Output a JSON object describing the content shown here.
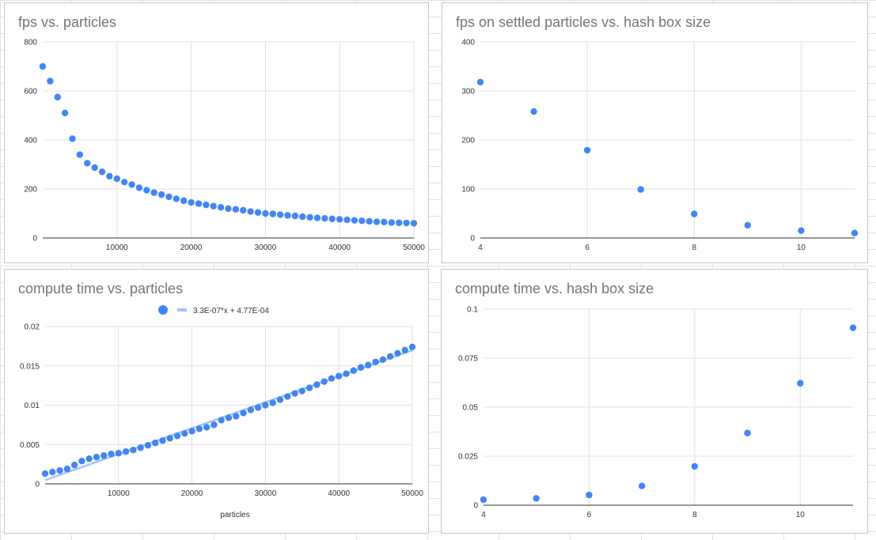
{
  "colors": {
    "point": "#4285f4",
    "trendline": "#a4c2f4",
    "grid": "#e0e0e0",
    "axis": "#333333",
    "title": "#757575"
  },
  "chart_data": [
    {
      "type": "scatter",
      "title": "fps vs. particles",
      "xlabel": "",
      "ylabel": "",
      "xlim": [
        0,
        50000
      ],
      "ylim": [
        0,
        800
      ],
      "xticks": [
        10000,
        20000,
        30000,
        40000,
        50000
      ],
      "xtick_labels": [
        "10000",
        "20000",
        "30000",
        "40000",
        "50000"
      ],
      "yticks": [
        0,
        200,
        400,
        600,
        800
      ],
      "ytick_labels": [
        "0",
        "200",
        "400",
        "600",
        "800"
      ],
      "grid": true,
      "legend": "none",
      "x": [
        0,
        1000,
        2000,
        3000,
        4000,
        5000,
        6000,
        7000,
        8000,
        9000,
        10000,
        11000,
        12000,
        13000,
        14000,
        15000,
        16000,
        17000,
        18000,
        19000,
        20000,
        21000,
        22000,
        23000,
        24000,
        25000,
        26000,
        27000,
        28000,
        29000,
        30000,
        31000,
        32000,
        33000,
        34000,
        35000,
        36000,
        37000,
        38000,
        39000,
        40000,
        41000,
        42000,
        43000,
        44000,
        45000,
        46000,
        47000,
        48000,
        49000,
        50000
      ],
      "y": [
        700,
        640,
        575,
        510,
        405,
        340,
        305,
        287,
        270,
        252,
        242,
        228,
        218,
        205,
        195,
        185,
        177,
        168,
        160,
        152,
        145,
        140,
        135,
        130,
        125,
        120,
        117,
        113,
        108,
        104,
        100,
        98,
        95,
        92,
        90,
        87,
        84,
        82,
        80,
        78,
        76,
        74,
        72,
        70,
        68,
        66,
        65,
        63,
        62,
        61,
        60
      ]
    },
    {
      "type": "scatter",
      "title": "fps on settled particles vs. hash box size",
      "xlabel": "",
      "ylabel": "",
      "xlim": [
        4,
        11
      ],
      "ylim": [
        0,
        400
      ],
      "xticks": [
        4,
        6,
        8,
        10
      ],
      "xtick_labels": [
        "4",
        "6",
        "8",
        "10"
      ],
      "yticks": [
        0,
        100,
        200,
        300,
        400
      ],
      "ytick_labels": [
        "0",
        "100",
        "200",
        "300",
        "400"
      ],
      "grid": true,
      "legend": "none",
      "x": [
        4,
        5,
        6,
        7,
        8,
        9,
        10,
        11
      ],
      "y": [
        318,
        258,
        179,
        99,
        49,
        26,
        15,
        10
      ]
    },
    {
      "type": "scatter",
      "title": "compute time vs. particles",
      "xlabel": "particles",
      "ylabel": "",
      "xlim": [
        0,
        50000
      ],
      "ylim": [
        0,
        0.02
      ],
      "xticks": [
        10000,
        20000,
        30000,
        40000,
        50000
      ],
      "xtick_labels": [
        "10000",
        "20000",
        "30000",
        "40000",
        "50000"
      ],
      "yticks": [
        0,
        0.005,
        0.01,
        0.015,
        0.02
      ],
      "ytick_labels": [
        "0",
        "0.005",
        "0.01",
        "0.015",
        "0.02"
      ],
      "grid": true,
      "legend": "top",
      "trendline": {
        "label": "3.3E-07*x + 4.77E-04",
        "slope": 3.3e-07,
        "intercept": 0.000477
      },
      "x": [
        0,
        1000,
        2000,
        3000,
        4000,
        5000,
        6000,
        7000,
        8000,
        9000,
        10000,
        11000,
        12000,
        13000,
        14000,
        15000,
        16000,
        17000,
        18000,
        19000,
        20000,
        21000,
        22000,
        23000,
        24000,
        25000,
        26000,
        27000,
        28000,
        29000,
        30000,
        31000,
        32000,
        33000,
        34000,
        35000,
        36000,
        37000,
        38000,
        39000,
        40000,
        41000,
        42000,
        43000,
        44000,
        45000,
        46000,
        47000,
        48000,
        49000,
        50000
      ],
      "y": [
        0.0013,
        0.0015,
        0.0017,
        0.0019,
        0.0024,
        0.0029,
        0.0032,
        0.0034,
        0.0036,
        0.0038,
        0.0039,
        0.0041,
        0.0043,
        0.0046,
        0.0049,
        0.0052,
        0.0055,
        0.0058,
        0.0061,
        0.0064,
        0.0067,
        0.007,
        0.0072,
        0.0075,
        0.0081,
        0.0084,
        0.0086,
        0.009,
        0.0094,
        0.0097,
        0.01,
        0.0103,
        0.0107,
        0.0111,
        0.0115,
        0.0118,
        0.0122,
        0.0126,
        0.013,
        0.0134,
        0.0137,
        0.014,
        0.0144,
        0.0148,
        0.0151,
        0.0155,
        0.0158,
        0.0162,
        0.0166,
        0.017,
        0.0174
      ]
    },
    {
      "type": "scatter",
      "title": "compute time vs. hash box size",
      "xlabel": "",
      "ylabel": "",
      "xlim": [
        4,
        11
      ],
      "ylim": [
        0,
        0.1
      ],
      "xticks": [
        4,
        6,
        8,
        10
      ],
      "xtick_labels": [
        "4",
        "6",
        "8",
        "10"
      ],
      "yticks": [
        0,
        0.025,
        0.05,
        0.075,
        0.1
      ],
      "ytick_labels": [
        "0",
        "0.025",
        "0.05",
        "0.075",
        "0.1"
      ],
      "grid": true,
      "legend": "none",
      "x": [
        4,
        5,
        6,
        7,
        8,
        9,
        10,
        11
      ],
      "y": [
        0.0028,
        0.0035,
        0.0052,
        0.0098,
        0.0198,
        0.0368,
        0.0622,
        0.0905
      ]
    }
  ]
}
